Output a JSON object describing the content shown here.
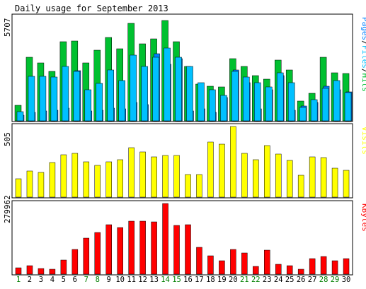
{
  "title": "Daily usage for September 2013",
  "colors": {
    "hits": "#00c030",
    "files": "#00c0ff",
    "pages": "#0080ff",
    "visits": "#ffff00",
    "kbytes": "#ff0000",
    "weekday_label": "#0000ff",
    "weekend_label": "#008000",
    "panel_border": "#000000",
    "background": "#ffffff",
    "outer_bg": "#ffffff"
  },
  "chart_data": [
    {
      "type": "bar",
      "panel": "hits-files-pages",
      "max_label": "5707",
      "legend": [
        {
          "name": "Pages",
          "color": "#0080ff"
        },
        {
          "name": "Files",
          "color": "#00c0ff"
        },
        {
          "name": "Hits",
          "color": "#00c030"
        }
      ],
      "ylim": [
        0,
        5707
      ],
      "categories": [
        "1",
        "2",
        "3",
        "4",
        "5",
        "6",
        "7",
        "8",
        "9",
        "10",
        "11",
        "12",
        "13",
        "14",
        "15",
        "16",
        "17",
        "18",
        "19",
        "20",
        "21",
        "22",
        "23",
        "24",
        "25",
        "26",
        "27",
        "28",
        "29",
        "30"
      ],
      "series": [
        {
          "name": "Hits",
          "values": [
            850,
            3500,
            3200,
            2700,
            4350,
            4400,
            3200,
            3900,
            4600,
            3950,
            5350,
            4250,
            4500,
            5500,
            4350,
            3000,
            2000,
            1900,
            1850,
            3400,
            3000,
            2500,
            2300,
            3350,
            2800,
            1100,
            1500,
            3500,
            2650,
            2600
          ]
        },
        {
          "name": "Files",
          "values": [
            500,
            2450,
            2450,
            2400,
            3000,
            2700,
            1700,
            2050,
            2800,
            2200,
            3600,
            3000,
            3500,
            4000,
            3500,
            3000,
            2100,
            1700,
            1400,
            2700,
            2400,
            2100,
            1850,
            2650,
            2100,
            750,
            1150,
            1800,
            2200,
            1550
          ]
        },
        {
          "name": "Pages",
          "values": [
            300,
            450,
            550,
            600,
            700,
            2750,
            550,
            600,
            700,
            650,
            1000,
            900,
            3700,
            3100,
            3400,
            550,
            650,
            450,
            1300,
            2800,
            2100,
            650,
            1700,
            2500,
            600,
            800,
            1000,
            1900,
            1700,
            1600
          ]
        }
      ]
    },
    {
      "type": "bar",
      "panel": "visits",
      "max_label": "505",
      "legend": [
        {
          "name": "Visits",
          "color": "#ffff00"
        }
      ],
      "ylim": [
        0,
        505
      ],
      "categories": [
        "1",
        "2",
        "3",
        "4",
        "5",
        "6",
        "7",
        "8",
        "9",
        "10",
        "11",
        "12",
        "13",
        "14",
        "15",
        "16",
        "17",
        "18",
        "19",
        "20",
        "21",
        "22",
        "23",
        "24",
        "25",
        "26",
        "27",
        "28",
        "29",
        "30"
      ],
      "series": [
        {
          "name": "Visits",
          "values": [
            130,
            185,
            175,
            245,
            305,
            315,
            255,
            225,
            250,
            270,
            355,
            325,
            290,
            300,
            300,
            160,
            160,
            395,
            380,
            505,
            315,
            270,
            370,
            310,
            265,
            155,
            290,
            285,
            205,
            190
          ]
        }
      ]
    },
    {
      "type": "bar",
      "panel": "kbytes",
      "max_label": "279962",
      "legend": [
        {
          "name": "KBytes",
          "color": "#ff0000"
        }
      ],
      "ylim": [
        0,
        279962
      ],
      "categories": [
        "1",
        "2",
        "3",
        "4",
        "5",
        "6",
        "7",
        "8",
        "9",
        "10",
        "11",
        "12",
        "13",
        "14",
        "15",
        "16",
        "17",
        "18",
        "19",
        "20",
        "21",
        "22",
        "23",
        "24",
        "25",
        "26",
        "27",
        "28",
        "29",
        "30"
      ],
      "series": [
        {
          "name": "KBytes",
          "values": [
            24000,
            33000,
            22000,
            19000,
            57000,
            97000,
            142000,
            165000,
            195000,
            186000,
            210000,
            210000,
            208000,
            279962,
            193000,
            196000,
            106000,
            73000,
            53000,
            98000,
            84000,
            30000,
            95000,
            38000,
            34000,
            20000,
            62000,
            71000,
            53000,
            62000
          ]
        }
      ]
    }
  ],
  "x_axis": {
    "labels": [
      "1",
      "2",
      "3",
      "4",
      "5",
      "6",
      "7",
      "8",
      "9",
      "10",
      "11",
      "12",
      "13",
      "14",
      "15",
      "16",
      "17",
      "18",
      "19",
      "20",
      "21",
      "22",
      "23",
      "24",
      "25",
      "26",
      "27",
      "28",
      "29",
      "30"
    ],
    "weekend_days": [
      "1",
      "7",
      "8",
      "14",
      "15",
      "21",
      "22",
      "28",
      "29"
    ]
  }
}
